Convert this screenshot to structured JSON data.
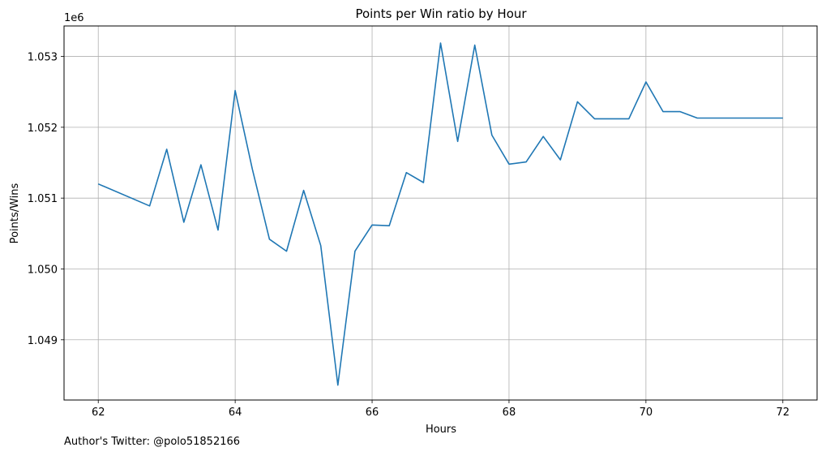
{
  "chart_data": {
    "type": "line",
    "title": "Points per Win ratio by Hour",
    "xlabel": "Hours",
    "ylabel": "Points/Wins",
    "y_offset_label": "1e6",
    "xlim": [
      61.5,
      72.5
    ],
    "ylim": [
      1.04815,
      1.05343
    ],
    "x_ticks": [
      62,
      64,
      66,
      68,
      70,
      72
    ],
    "x_tick_labels": [
      "62",
      "64",
      "66",
      "68",
      "70",
      "72"
    ],
    "y_ticks": [
      1.049,
      1.05,
      1.051,
      1.052,
      1.053
    ],
    "y_tick_labels": [
      "1.049",
      "1.050",
      "1.051",
      "1.052",
      "1.053"
    ],
    "grid": true,
    "series": [
      {
        "color": "#1f77b4",
        "x": [
          62,
          62.75,
          63,
          63.25,
          63.5,
          63.75,
          64,
          64.25,
          64.5,
          64.75,
          65,
          65.25,
          65.5,
          65.75,
          66,
          66.25,
          66.5,
          66.75,
          67,
          67.25,
          67.5,
          67.75,
          68,
          68.25,
          68.5,
          68.75,
          69,
          69.25,
          69.5,
          69.75,
          70,
          70.25,
          70.5,
          70.75,
          71,
          71.25,
          71.5,
          71.75,
          72
        ],
        "y": [
          1.0512,
          1.05089,
          1.05169,
          1.05066,
          1.05147,
          1.05055,
          1.05252,
          1.05141,
          1.05042,
          1.05025,
          1.05111,
          1.05033,
          1.04836,
          1.05025,
          1.05062,
          1.05061,
          1.05136,
          1.05122,
          1.05319,
          1.0518,
          1.05316,
          1.05189,
          1.05148,
          1.05151,
          1.05187,
          1.05154,
          1.05236,
          1.05212,
          1.05212,
          1.05212,
          1.05264,
          1.05222,
          1.05222,
          1.05213,
          1.05213,
          1.05213,
          1.05213,
          1.05213,
          1.05213
        ]
      }
    ]
  },
  "footer": {
    "text": "Author's Twitter: @polo51852166"
  }
}
